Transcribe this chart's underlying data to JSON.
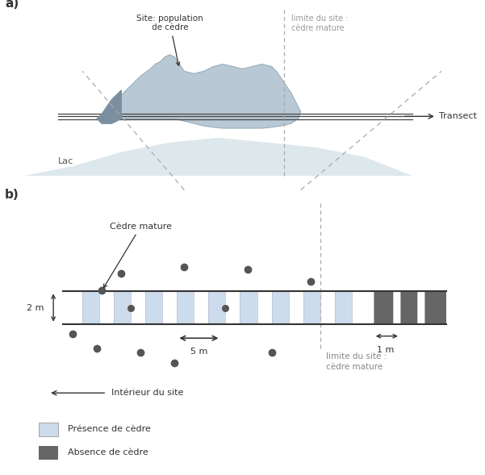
{
  "fig_width": 6.01,
  "fig_height": 5.89,
  "bg_color": "#ffffff",
  "panel_a": {
    "label": "a)",
    "lake_color": "#dde8ec",
    "site_color": "#b8c8d4",
    "site_dark_color": "#7a8fa0",
    "transect_color": "#444444",
    "label_site": "Site: population\nde cèdre",
    "label_lake": "Lac",
    "label_transect": "Transect",
    "label_limite": "limite du site :\ncèdre mature",
    "dashed_line_color": "#aaaaaa"
  },
  "panel_b": {
    "label": "b)",
    "transect_color": "#444444",
    "presence_color": "#ccdcec",
    "absence_color": "#666666",
    "dot_color": "#555555",
    "dashed_color": "#aaaaaa",
    "label_cedre_mature": "Cèdre mature",
    "label_2m": "2 m",
    "label_5m": "5 m",
    "label_1m": "1 m",
    "label_interieur": "Intérieur du site",
    "label_limite": "limite du site :\ncèdre mature",
    "legend_presence": "Présence de cèdre",
    "legend_absence": "Absence de cèdre"
  }
}
